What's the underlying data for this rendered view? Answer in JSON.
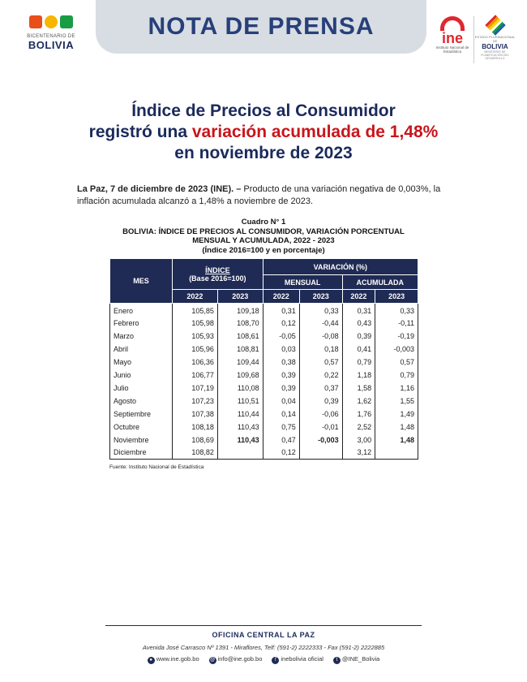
{
  "header": {
    "left_logo": {
      "subtitle": "BICENTENARIO DE",
      "main": "BOLIVIA"
    },
    "banner_title": "NOTA DE PRENSA",
    "ine_logo": {
      "name": "ine",
      "subtitle": "Instituto Nacional de Estadística"
    },
    "right_logo": {
      "subtitle": "ESTADO PLURINACIONAL DE",
      "main": "BOLIVIA",
      "subtitle2": "MINISTERIO DE PLANIFICACIÓN DEL DESARROLLO"
    }
  },
  "title": {
    "line1": "Índice de Precios al Consumidor",
    "line2_prefix": "registró una ",
    "line2_highlight": "variación acumulada de 1,48%",
    "line3": "en noviembre de 2023"
  },
  "lead": {
    "dateline": "La Paz, 7 de diciembre de 2023 (INE). –",
    "text": " Producto de una variación negativa de 0,003%, la inflación acumulada alcanzó a 1,48% a noviembre de 2023."
  },
  "caption": {
    "number": "Cuadro N° 1",
    "line1": "BOLIVIA: ÍNDICE DE PRECIOS AL CONSUMIDOR, VARIACIÓN PORCENTUAL",
    "line2": "MENSUAL Y ACUMULADA, 2022 - 2023",
    "line3": "(Índice 2016=100 y en porcentaje)"
  },
  "chart_data": {
    "type": "table",
    "title": "BOLIVIA: ÍNDICE DE PRECIOS AL CONSUMIDOR, VARIACIÓN PORCENTUAL MENSUAL Y ACUMULADA, 2022 - 2023",
    "headers": {
      "mes": "MES",
      "indice": "ÍNDICE",
      "indice_base": "(Base 2016=100)",
      "variacion": "VARIACIÓN (%)",
      "mensual": "MENSUAL",
      "acumulada": "ACUMULADA",
      "y2022": "2022",
      "y2023": "2023"
    },
    "rows": [
      [
        "Enero",
        "105,85",
        "109,18",
        "0,31",
        "0,33",
        "0,31",
        "0,33"
      ],
      [
        "Febrero",
        "105,98",
        "108,70",
        "0,12",
        "-0,44",
        "0,43",
        "-0,11"
      ],
      [
        "Marzo",
        "105,93",
        "108,61",
        "-0,05",
        "-0,08",
        "0,39",
        "-0,19"
      ],
      [
        "Abril",
        "105,96",
        "108,81",
        "0,03",
        "0,18",
        "0,41",
        "-0,003"
      ],
      [
        "Mayo",
        "106,36",
        "109,44",
        "0,38",
        "0,57",
        "0,79",
        "0,57"
      ],
      [
        "Junio",
        "106,77",
        "109,68",
        "0,39",
        "0,22",
        "1,18",
        "0,79"
      ],
      [
        "Julio",
        "107,19",
        "110,08",
        "0,39",
        "0,37",
        "1,58",
        "1,16"
      ],
      [
        "Agosto",
        "107,23",
        "110,51",
        "0,04",
        "0,39",
        "1,62",
        "1,55"
      ],
      [
        "Septiembre",
        "107,38",
        "110,44",
        "0,14",
        "-0,06",
        "1,76",
        "1,49"
      ],
      [
        "Octubre",
        "108,18",
        "110,43",
        "0,75",
        "-0,01",
        "2,52",
        "1,48"
      ],
      [
        "Noviembre",
        "108,69",
        "110,43",
        "0,47",
        "-0,003",
        "3,00",
        "1,48"
      ],
      [
        "Diciembre",
        "108,82",
        "",
        "0,12",
        "",
        "3,12",
        ""
      ]
    ],
    "highlighted_row": "Noviembre"
  },
  "source": "Fuente: Instituto Nacional de Estadística",
  "footer": {
    "office": "OFICINA CENTRAL LA PAZ",
    "address": "Avenida José Carrasco Nº 1391 - Miraflores, Telf: (591-2) 2222333 - Fax (591-2) 2222885",
    "contacts": [
      {
        "icon": "globe-icon",
        "text": "www.ine.gob.bo"
      },
      {
        "icon": "mail-icon",
        "text": "info@ine.gob.bo"
      },
      {
        "icon": "facebook-icon",
        "text": "inebolivia oficial"
      },
      {
        "icon": "twitter-icon",
        "text": "@INE_Bolivia"
      }
    ]
  },
  "colors": {
    "navy": "#1f2b54",
    "title_blue": "#1b2a5c",
    "highlight_red": "#c8151b",
    "banner_gray": "#d8dde3"
  }
}
